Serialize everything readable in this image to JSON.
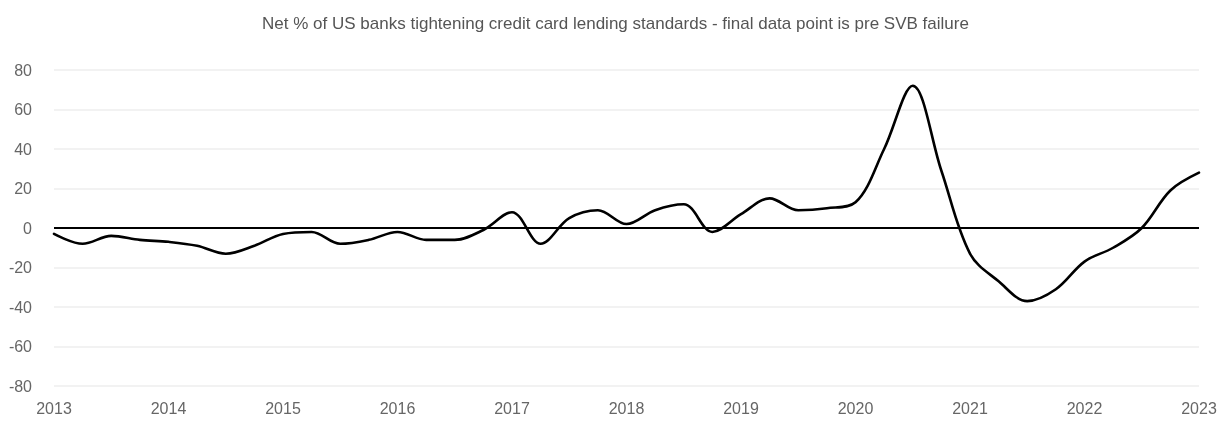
{
  "chart_data": {
    "type": "line",
    "title": "Net % of US banks tightening credit card lending standards - final data point is pre SVB failure",
    "x": [
      2013,
      2013.25,
      2013.5,
      2013.75,
      2014,
      2014.25,
      2014.5,
      2014.75,
      2015,
      2015.25,
      2015.5,
      2015.75,
      2016,
      2016.25,
      2016.5,
      2016.75,
      2017,
      2017.25,
      2017.5,
      2017.75,
      2018,
      2018.25,
      2018.5,
      2018.75,
      2019,
      2019.25,
      2019.5,
      2019.75,
      2020,
      2020.25,
      2020.5,
      2020.75,
      2021,
      2021.25,
      2021.5,
      2021.75,
      2022,
      2022.25,
      2022.5,
      2022.75,
      2023
    ],
    "series": [
      {
        "color": "#000000",
        "values": [
          -3,
          -8,
          -4,
          -6,
          -7,
          -9,
          -13,
          -9,
          -3,
          -2,
          -8,
          -6,
          -2,
          -6,
          -6,
          -1,
          8,
          -8,
          5,
          9,
          2,
          9,
          12,
          -2,
          7,
          15,
          9,
          10,
          13,
          40,
          72,
          29,
          -13,
          -27,
          -37,
          -31,
          -17,
          -10,
          0,
          19,
          28
        ]
      }
    ],
    "xlim": [
      2013,
      2023
    ],
    "xticks": [
      2013,
      2014,
      2015,
      2016,
      2017,
      2018,
      2019,
      2020,
      2021,
      2022,
      2023
    ],
    "ylim": [
      -80,
      80
    ],
    "yticks": [
      -80,
      -60,
      -40,
      -20,
      0,
      20,
      40,
      60,
      80
    ],
    "grid": "y",
    "marker": "none",
    "line_style": "solid",
    "ref_lines": [
      {
        "axis": "y",
        "value": 0,
        "color": "#000000"
      }
    ]
  }
}
